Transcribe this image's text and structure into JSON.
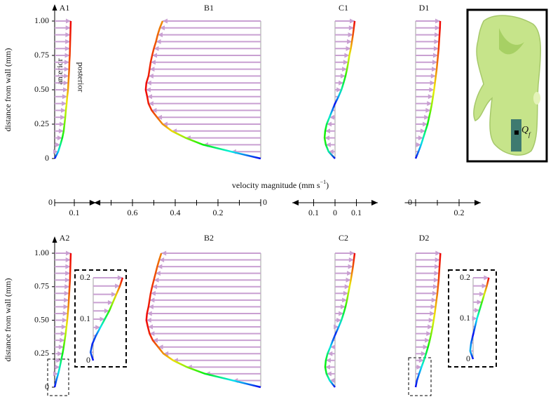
{
  "chart_data": {
    "type": "profile",
    "y_label": "distance from wall (mm)",
    "x_label": [
      "velocity magnitude (mm s",
      "−1",
      ")"
    ],
    "annotations": [
      "anterior",
      "posterior"
    ],
    "ylim": [
      0,
      1
    ],
    "yticks": [
      0,
      0.25,
      {
        "value": 0.5,
        "label": "0.50"
      },
      0.75,
      {
        "value": 1,
        "label": "1.00"
      }
    ],
    "y": [
      0,
      0.05,
      0.1,
      0.15,
      0.2,
      0.25,
      0.3,
      0.35,
      0.4,
      0.45,
      0.5,
      0.55,
      0.6,
      0.65,
      0.7,
      0.75,
      0.8,
      0.85,
      0.9,
      0.95,
      1
    ],
    "arrow_color": "#c9a0d2",
    "columns": [
      {
        "xlim": [
          0,
          0.21
        ],
        "xticks": [
          0,
          0.1
        ],
        "minor_xticks": [],
        "panels": [
          {
            "title": "A1",
            "values": [
              0,
              0.018,
              0.029,
              0.039,
              0.046,
              0.05,
              0.054,
              0.057,
              0.061,
              0.064,
              0.068,
              0.07,
              0.072,
              0.074,
              0.075,
              0.077,
              0.078,
              0.079,
              0.08,
              0.081,
              0.082
            ]
          },
          {
            "title": "A2",
            "values": [
              0,
              0.008,
              0.018,
              0.026,
              0.033,
              0.04,
              0.046,
              0.051,
              0.056,
              0.06,
              0.064,
              0.067,
              0.07,
              0.072,
              0.074,
              0.076,
              0.078,
              0.079,
              0.08,
              0.081,
              0.082
            ]
          }
        ]
      },
      {
        "xlim": [
          0,
          0.78
        ],
        "xticks": [
          0,
          0.2,
          0.4,
          0.6
        ],
        "minor_xticks": [
          0.1,
          0.3,
          0.5,
          0.7
        ],
        "panels": [
          {
            "title": "B1",
            "values": [
              0,
              0.138,
              0.269,
              0.351,
              0.416,
              0.459,
              0.485,
              0.51,
              0.525,
              0.531,
              0.538,
              0.535,
              0.525,
              0.52,
              0.515,
              0.508,
              0.5,
              0.49,
              0.482,
              0.472,
              0.459
            ]
          },
          {
            "title": "B2",
            "values": [
              0,
              0.13,
              0.26,
              0.345,
              0.41,
              0.455,
              0.48,
              0.505,
              0.52,
              0.528,
              0.535,
              0.532,
              0.525,
              0.52,
              0.515,
              0.508,
              0.5,
              0.492,
              0.484,
              0.475,
              0.465
            ]
          }
        ]
      },
      {
        "xlim": [
          -0.2,
          0.2
        ],
        "xticks": [
          {
            "value": -0.1,
            "label": "0.1"
          },
          0,
          0.1
        ],
        "minor_xticks": [],
        "panels": [
          {
            "title": "C1",
            "values": [
              0,
              -0.03,
              -0.043,
              -0.049,
              -0.046,
              -0.039,
              -0.026,
              -0.013,
              0,
              0.016,
              0.03,
              0.04,
              0.049,
              0.056,
              0.062,
              0.067,
              0.074,
              0.079,
              0.084,
              0.088,
              0.092
            ]
          },
          {
            "title": "C2",
            "values": [
              0,
              -0.025,
              -0.04,
              -0.046,
              -0.043,
              -0.035,
              -0.022,
              -0.01,
              0.003,
              0.017,
              0.03,
              0.04,
              0.049,
              0.056,
              0.062,
              0.068,
              0.074,
              0.079,
              0.084,
              0.088,
              0.092
            ]
          }
        ]
      },
      {
        "xlim": [
          -0.05,
          0.3
        ],
        "xticks": [
          0,
          0.2
        ],
        "minor_xticks": [
          0.1
        ],
        "panels": [
          {
            "title": "D1",
            "values": [
              0,
              0.013,
              0.025,
              0.035,
              0.045,
              0.055,
              0.062,
              0.069,
              0.075,
              0.08,
              0.085,
              0.089,
              0.093,
              0.097,
              0.1,
              0.103,
              0.106,
              0.108,
              0.11,
              0.112,
              0.113
            ]
          },
          {
            "title": "D2",
            "values": [
              0,
              0.006,
              0.016,
              0.027,
              0.038,
              0.048,
              0.057,
              0.065,
              0.072,
              0.078,
              0.083,
              0.088,
              0.092,
              0.096,
              0.1,
              0.103,
              0.106,
              0.108,
              0.11,
              0.112,
              0.114
            ]
          }
        ]
      }
    ],
    "insets": [
      {
        "ylim": [
          0,
          0.2
        ],
        "yticks": [
          0,
          0.1,
          0.2
        ],
        "y": [
          0,
          0.02,
          0.04,
          0.06,
          0.08,
          0.1,
          0.12,
          0.14,
          0.16,
          0.18,
          0.2
        ],
        "values": [
          0,
          -0.003,
          -0.001,
          0.003,
          0.008,
          0.013,
          0.018,
          0.022,
          0.026,
          0.03,
          0.033
        ]
      },
      {
        "ylim": [
          0,
          0.2
        ],
        "yticks": [
          0,
          0.1,
          0.2
        ],
        "y": [
          0,
          0.02,
          0.04,
          0.06,
          0.08,
          0.1,
          0.12,
          0.14,
          0.16,
          0.18,
          0.2
        ],
        "values": [
          0,
          -0.006,
          -0.004,
          0,
          0.004,
          0.008,
          0.013,
          0.018,
          0.023,
          0.028,
          0.032
        ]
      }
    ],
    "image_label": [
      "Q",
      "f"
    ]
  }
}
